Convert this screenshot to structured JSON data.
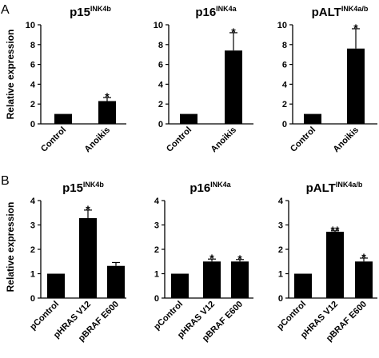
{
  "panels": [
    {
      "label": "A",
      "ylabel": "Relative expression"
    },
    {
      "label": "B",
      "ylabel": "Relative expression"
    }
  ],
  "chart_data": [
    {
      "type": "bar",
      "panel": "A",
      "title": {
        "base": "p15",
        "sup": "INK4b"
      },
      "categories": [
        "Control",
        "Anoikis"
      ],
      "values": [
        1.0,
        2.3
      ],
      "errors": [
        0,
        0.35
      ],
      "significance": [
        "",
        "*"
      ],
      "ylim": [
        0,
        10
      ],
      "yticks": [
        0,
        2,
        4,
        6,
        8,
        10
      ],
      "grid": false
    },
    {
      "type": "bar",
      "panel": "A",
      "title": {
        "base": "p16",
        "sup": "INK4a"
      },
      "categories": [
        "Control",
        "Anoikis"
      ],
      "values": [
        1.0,
        7.4
      ],
      "errors": [
        0,
        1.8
      ],
      "significance": [
        "",
        "*"
      ],
      "ylim": [
        0,
        10
      ],
      "yticks": [
        0,
        2,
        4,
        6,
        8,
        10
      ],
      "grid": false
    },
    {
      "type": "bar",
      "panel": "A",
      "title": {
        "base": "pALT",
        "sup": "INK4a/b"
      },
      "categories": [
        "Control",
        "Anoikis"
      ],
      "values": [
        1.0,
        7.6
      ],
      "errors": [
        0,
        2.0
      ],
      "significance": [
        "",
        "*"
      ],
      "ylim": [
        0,
        10
      ],
      "yticks": [
        0,
        2,
        4,
        6,
        8,
        10
      ],
      "grid": false
    },
    {
      "type": "bar",
      "panel": "B",
      "title": {
        "base": "p15",
        "sup": "INK4b"
      },
      "categories": [
        "pControl",
        "pHRAS V12",
        "pBRAF E600"
      ],
      "values": [
        1.0,
        3.28,
        1.32
      ],
      "errors": [
        0,
        0.33,
        0.14
      ],
      "significance": [
        "",
        "*",
        ""
      ],
      "ylim": [
        0,
        4
      ],
      "yticks": [
        0,
        1,
        2,
        3,
        4
      ],
      "grid": false
    },
    {
      "type": "bar",
      "panel": "B",
      "title": {
        "base": "p16",
        "sup": "INK4a"
      },
      "categories": [
        "pControl",
        "pHRAS V12",
        "pBRAF E600"
      ],
      "values": [
        1.0,
        1.5,
        1.5
      ],
      "errors": [
        0,
        0.1,
        0.08
      ],
      "significance": [
        "",
        "*",
        "*"
      ],
      "ylim": [
        0,
        4
      ],
      "yticks": [
        0,
        1,
        2,
        3,
        4
      ],
      "grid": false
    },
    {
      "type": "bar",
      "panel": "B",
      "title": {
        "base": "pALT",
        "sup": "INK4a/b"
      },
      "categories": [
        "pControl",
        "pHRAS V12",
        "pBRAF E600"
      ],
      "values": [
        1.0,
        2.72,
        1.5
      ],
      "errors": [
        0,
        0.04,
        0.14
      ],
      "significance": [
        "",
        "**",
        "*"
      ],
      "ylim": [
        0,
        4
      ],
      "yticks": [
        0,
        1,
        2,
        3,
        4
      ],
      "grid": false
    }
  ]
}
